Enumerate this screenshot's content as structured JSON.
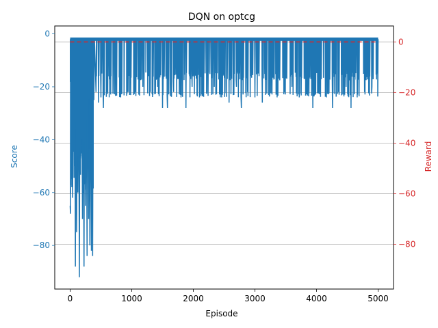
{
  "chart_data": {
    "type": "line",
    "title": "DQN on optcg",
    "xlabel": "Episode",
    "ylabel_left": "Score",
    "ylabel_right": "Reward",
    "xlim": [
      -250,
      5250
    ],
    "ylim_left": [
      -96.5,
      3
    ],
    "ylim_right": [
      -97.7,
      6.3
    ],
    "xticks": [
      0,
      1000,
      2000,
      3000,
      4000,
      5000
    ],
    "yticks_left": [
      0,
      -20,
      -40,
      -60,
      -80
    ],
    "yticks_right": [
      0,
      -20,
      -40,
      -60,
      -80
    ],
    "grid": "horizontal",
    "colors": {
      "score": "#1f77b4",
      "reward": "#d62728",
      "grid": "#b0b0b0"
    },
    "series": [
      {
        "axis": "left",
        "style": "solid",
        "color": "#1f77b4",
        "x_start": 0,
        "x_end": 5000,
        "baseline": -2,
        "points": [
          [
            0,
            -65
          ],
          [
            5,
            -68
          ],
          [
            10,
            -2
          ],
          [
            20,
            -55
          ],
          [
            30,
            -2
          ],
          [
            40,
            -62
          ],
          [
            55,
            -2
          ],
          [
            65,
            -50
          ],
          [
            75,
            -2
          ],
          [
            85,
            -88
          ],
          [
            95,
            -2
          ],
          [
            105,
            -75
          ],
          [
            115,
            -2
          ],
          [
            125,
            -60
          ],
          [
            135,
            -2
          ],
          [
            150,
            -92
          ],
          [
            160,
            -2
          ],
          [
            175,
            -45
          ],
          [
            185,
            -2
          ],
          [
            200,
            -70
          ],
          [
            210,
            -2
          ],
          [
            225,
            -88
          ],
          [
            235,
            -2
          ],
          [
            250,
            -65
          ],
          [
            260,
            -2
          ],
          [
            275,
            -84
          ],
          [
            285,
            -2
          ],
          [
            300,
            -70
          ],
          [
            310,
            -2
          ],
          [
            320,
            -80
          ],
          [
            330,
            -2
          ],
          [
            345,
            -82
          ],
          [
            355,
            -2
          ],
          [
            365,
            -84
          ],
          [
            375,
            -2
          ],
          [
            385,
            -25
          ],
          [
            395,
            -2
          ],
          [
            420,
            -22
          ],
          [
            440,
            -2
          ],
          [
            460,
            -26
          ],
          [
            480,
            -2
          ],
          [
            500,
            -24
          ],
          [
            520,
            -2
          ],
          [
            540,
            -28
          ],
          [
            560,
            -2
          ],
          [
            600,
            -22
          ],
          [
            640,
            -2
          ],
          [
            700,
            -16
          ],
          [
            760,
            -2
          ],
          [
            820,
            -24
          ],
          [
            880,
            -2
          ],
          [
            940,
            -22
          ],
          [
            1000,
            -2
          ],
          [
            1060,
            -22
          ],
          [
            1120,
            -2
          ],
          [
            1180,
            -20
          ],
          [
            1240,
            -2
          ],
          [
            1300,
            -22
          ],
          [
            1360,
            -2
          ],
          [
            1420,
            -20
          ],
          [
            1480,
            -2
          ],
          [
            1500,
            -28
          ],
          [
            1540,
            -2
          ],
          [
            1580,
            -28
          ],
          [
            1620,
            -2
          ],
          [
            1680,
            -22
          ],
          [
            1740,
            -2
          ],
          [
            1800,
            -24
          ],
          [
            1860,
            -2
          ],
          [
            1880,
            -28
          ],
          [
            1920,
            -2
          ],
          [
            1980,
            -20
          ],
          [
            2040,
            -2
          ],
          [
            2100,
            -24
          ],
          [
            2160,
            -2
          ],
          [
            2220,
            -22
          ],
          [
            2280,
            -2
          ],
          [
            2340,
            -20
          ],
          [
            2400,
            -2
          ],
          [
            2460,
            -24
          ],
          [
            2520,
            -2
          ],
          [
            2580,
            -26
          ],
          [
            2640,
            -2
          ],
          [
            2700,
            -20
          ],
          [
            2760,
            -2
          ],
          [
            2780,
            -28
          ],
          [
            2820,
            -2
          ],
          [
            2880,
            -22
          ],
          [
            2940,
            -2
          ],
          [
            3000,
            -24
          ],
          [
            3060,
            -2
          ],
          [
            3120,
            -26
          ],
          [
            3180,
            -2
          ],
          [
            3240,
            -22
          ],
          [
            3300,
            -2
          ],
          [
            3360,
            -24
          ],
          [
            3420,
            -2
          ],
          [
            3480,
            -22
          ],
          [
            3540,
            -2
          ],
          [
            3600,
            -20
          ],
          [
            3660,
            -2
          ],
          [
            3720,
            -24
          ],
          [
            3780,
            -2
          ],
          [
            3840,
            -22
          ],
          [
            3900,
            -2
          ],
          [
            3940,
            -28
          ],
          [
            3980,
            -2
          ],
          [
            4040,
            -22
          ],
          [
            4100,
            -2
          ],
          [
            4160,
            -24
          ],
          [
            4220,
            -2
          ],
          [
            4260,
            -28
          ],
          [
            4300,
            -2
          ],
          [
            4360,
            -22
          ],
          [
            4420,
            -2
          ],
          [
            4480,
            -20
          ],
          [
            4540,
            -2
          ],
          [
            4560,
            -28
          ],
          [
            4600,
            -2
          ],
          [
            4660,
            -24
          ],
          [
            4720,
            -2
          ],
          [
            4780,
            -22
          ],
          [
            4840,
            -2
          ],
          [
            4900,
            -20
          ],
          [
            4960,
            -2
          ],
          [
            4980,
            -8
          ],
          [
            5000,
            -2
          ]
        ]
      },
      {
        "axis": "right",
        "style": "dashed",
        "color": "#d62728",
        "x": [
          0,
          5000
        ],
        "values": [
          0,
          0
        ]
      }
    ]
  }
}
